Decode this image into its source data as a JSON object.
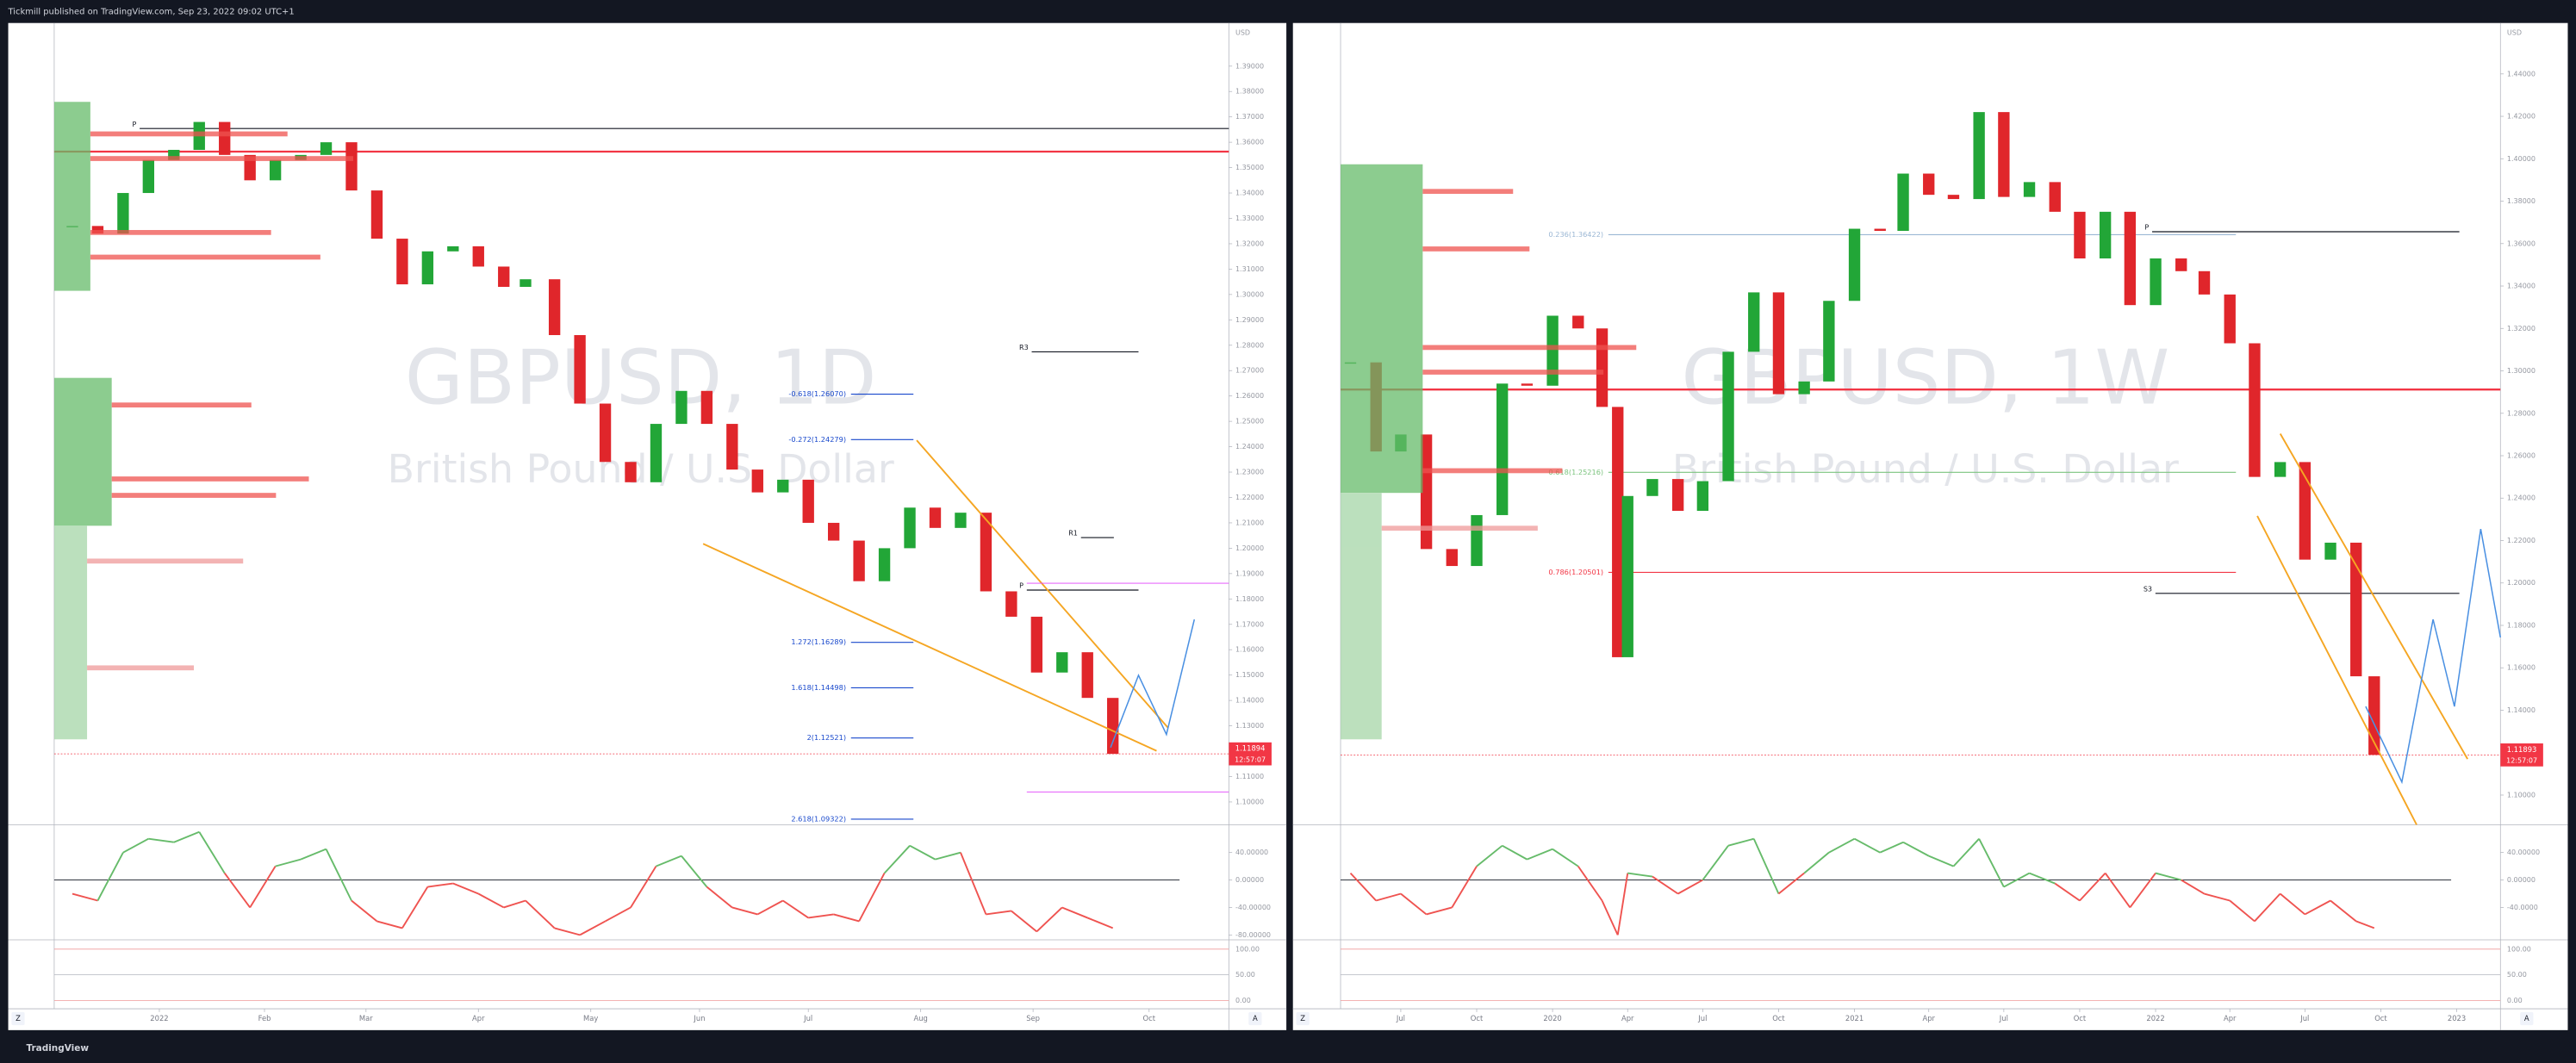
{
  "header": {
    "title": "Tickmill published on TradingView.com, Sep 23, 2022 09:02 UTC+1"
  },
  "panes": [
    {
      "symbol_title": "GBPUSD, 1D",
      "description": "British Pound / U.S. Dollar",
      "currency": "USD",
      "xlim": [
        "2021-12-05",
        "2022-10-25"
      ],
      "xticks": [
        {
          "value": "2022-01-03",
          "label": "2022"
        },
        {
          "value": "2022-02-01",
          "label": "Feb"
        },
        {
          "value": "2022-03-01",
          "label": "Mar"
        },
        {
          "value": "2022-04-01",
          "label": "Apr"
        },
        {
          "value": "2022-05-02",
          "label": "May"
        },
        {
          "value": "2022-06-01",
          "label": "Jun"
        },
        {
          "value": "2022-07-01",
          "label": "Jul"
        },
        {
          "value": "2022-08-01",
          "label": "Aug"
        },
        {
          "value": "2022-09-01",
          "label": "Sep"
        },
        {
          "value": "2022-10-03",
          "label": "Oct"
        }
      ],
      "ylim": [
        1.091,
        1.407
      ],
      "yticks": [
        {
          "value": 1.39,
          "label": "1.39000"
        },
        {
          "value": 1.38,
          "label": "1.38000"
        },
        {
          "value": 1.37,
          "label": "1.37000"
        },
        {
          "value": 1.36,
          "label": "1.36000"
        },
        {
          "value": 1.35,
          "label": "1.35000"
        },
        {
          "value": 1.34,
          "label": "1.34000"
        },
        {
          "value": 1.33,
          "label": "1.33000"
        },
        {
          "value": 1.32,
          "label": "1.32000"
        },
        {
          "value": 1.31,
          "label": "1.31000"
        },
        {
          "value": 1.3,
          "label": "1.30000"
        },
        {
          "value": 1.29,
          "label": "1.29000"
        },
        {
          "value": 1.28,
          "label": "1.28000"
        },
        {
          "value": 1.27,
          "label": "1.27000"
        },
        {
          "value": 1.26,
          "label": "1.26000"
        },
        {
          "value": 1.25,
          "label": "1.25000"
        },
        {
          "value": 1.24,
          "label": "1.24000"
        },
        {
          "value": 1.23,
          "label": "1.23000"
        },
        {
          "value": 1.22,
          "label": "1.22000"
        },
        {
          "value": 1.21,
          "label": "1.21000"
        },
        {
          "value": 1.2,
          "label": "1.20000"
        },
        {
          "value": 1.19,
          "label": "1.19000"
        },
        {
          "value": 1.18,
          "label": "1.18000"
        },
        {
          "value": 1.17,
          "label": "1.17000"
        },
        {
          "value": 1.16,
          "label": "1.16000"
        },
        {
          "value": 1.15,
          "label": "1.15000"
        },
        {
          "value": 1.14,
          "label": "1.14000"
        },
        {
          "value": 1.13,
          "label": "1.13000"
        },
        {
          "value": 1.12,
          "label": "1.12000"
        },
        {
          "value": 1.11,
          "label": "1.11000"
        },
        {
          "value": 1.1,
          "label": "1.10000"
        }
      ],
      "candles": {
        "up_color": "#22a637",
        "down_color": "#e0262b",
        "x": [
          "2021-12-10",
          "2021-12-17",
          "2021-12-24",
          "2021-12-31",
          "2022-01-07",
          "2022-01-14",
          "2022-01-21",
          "2022-01-28",
          "2022-02-04",
          "2022-02-11",
          "2022-02-18",
          "2022-02-25",
          "2022-03-04",
          "2022-03-11",
          "2022-03-18",
          "2022-03-25",
          "2022-04-01",
          "2022-04-08",
          "2022-04-14",
          "2022-04-22",
          "2022-04-29",
          "2022-05-06",
          "2022-05-13",
          "2022-05-20",
          "2022-05-27",
          "2022-06-03",
          "2022-06-10",
          "2022-06-17",
          "2022-06-24",
          "2022-07-01",
          "2022-07-08",
          "2022-07-15",
          "2022-07-22",
          "2022-07-29",
          "2022-08-05",
          "2022-08-12",
          "2022-08-19",
          "2022-08-26",
          "2022-09-02",
          "2022-09-09",
          "2022-09-16",
          "2022-09-23"
        ],
        "close": [
          1.327,
          1.324,
          1.34,
          1.353,
          1.357,
          1.368,
          1.355,
          1.345,
          1.353,
          1.355,
          1.36,
          1.341,
          1.322,
          1.304,
          1.317,
          1.319,
          1.311,
          1.303,
          1.306,
          1.284,
          1.257,
          1.234,
          1.226,
          1.249,
          1.262,
          1.249,
          1.231,
          1.222,
          1.227,
          1.21,
          1.203,
          1.187,
          1.2,
          1.216,
          1.208,
          1.214,
          1.183,
          1.173,
          1.151,
          1.159,
          1.141,
          1.11894
        ]
      },
      "last_price": 1.11894,
      "countdown": "12:57:07",
      "fib_levels": [
        {
          "label": "-0.618(1.26070)",
          "value": 1.2607,
          "color": "#1848cc"
        },
        {
          "label": "-0.272(1.24279)",
          "value": 1.24279,
          "color": "#1848cc"
        },
        {
          "label": "1.272(1.16289)",
          "value": 1.16289,
          "color": "#1848cc"
        },
        {
          "label": "1.618(1.14498)",
          "value": 1.14498,
          "color": "#1848cc"
        },
        {
          "label": "2(1.12521)",
          "value": 1.12521,
          "color": "#1848cc"
        },
        {
          "label": "2.618(1.09322)",
          "value": 1.09322,
          "color": "#1848cc"
        }
      ],
      "pivots": [
        {
          "name": "P",
          "price": 1.3654
        },
        {
          "name": "R3",
          "price": 1.2774
        },
        {
          "name": "R1",
          "price": 1.2042
        },
        {
          "name": "P",
          "price": 1.1835
        }
      ],
      "red_level": 1.3563,
      "oscillator": {
        "ylim": [
          -87,
          78
        ],
        "yticks": [
          {
            "value": 40,
            "label": "40.00000"
          },
          {
            "value": 0,
            "label": "0.00000"
          },
          {
            "value": -40,
            "label": "-40.00000"
          },
          {
            "value": -80,
            "label": "-80.00000"
          }
        ],
        "values": [
          -20,
          -30,
          40,
          60,
          55,
          70,
          10,
          -40,
          20,
          30,
          45,
          -30,
          -60,
          -70,
          -10,
          -5,
          -20,
          -40,
          -30,
          -70,
          -80,
          -60,
          -40,
          20,
          35,
          -10,
          -40,
          -50,
          -30,
          -55,
          -50,
          -60,
          10,
          50,
          30,
          40,
          -50,
          -45,
          -75,
          -40,
          -55,
          -70
        ]
      },
      "stochastic": {
        "ylim": [
          -16,
          115
        ],
        "yticks": [
          {
            "value": 100,
            "label": "100.00"
          },
          {
            "value": 50,
            "label": "50.00"
          },
          {
            "value": 0,
            "label": "0.00"
          }
        ]
      },
      "axis_buttons": [
        "Z",
        "A"
      ]
    },
    {
      "symbol_title": "GBPUSD, 1W",
      "description": "British Pound / U.S. Dollar",
      "currency": "USD",
      "xlim": [
        "2019-04-19",
        "2023-02-23"
      ],
      "xticks": [
        {
          "value": "2019-07-01",
          "label": "Jul"
        },
        {
          "value": "2019-10-01",
          "label": "Oct"
        },
        {
          "value": "2020-01-01",
          "label": "2020"
        },
        {
          "value": "2020-04-01",
          "label": "Apr"
        },
        {
          "value": "2020-07-01",
          "label": "Jul"
        },
        {
          "value": "2020-10-01",
          "label": "Oct"
        },
        {
          "value": "2021-01-01",
          "label": "2021"
        },
        {
          "value": "2021-04-01",
          "label": "Apr"
        },
        {
          "value": "2021-07-01",
          "label": "Jul"
        },
        {
          "value": "2021-10-01",
          "label": "Oct"
        },
        {
          "value": "2022-01-01",
          "label": "2022"
        },
        {
          "value": "2022-04-01",
          "label": "Apr"
        },
        {
          "value": "2022-07-01",
          "label": "Jul"
        },
        {
          "value": "2022-10-01",
          "label": "Oct"
        },
        {
          "value": "2023-01-01",
          "label": "2023"
        }
      ],
      "ylim": [
        1.086,
        1.464
      ],
      "yticks": [
        {
          "value": 1.44,
          "label": "1.44000"
        },
        {
          "value": 1.42,
          "label": "1.42000"
        },
        {
          "value": 1.4,
          "label": "1.40000"
        },
        {
          "value": 1.38,
          "label": "1.38000"
        },
        {
          "value": 1.36,
          "label": "1.36000"
        },
        {
          "value": 1.34,
          "label": "1.34000"
        },
        {
          "value": 1.32,
          "label": "1.32000"
        },
        {
          "value": 1.3,
          "label": "1.30000"
        },
        {
          "value": 1.28,
          "label": "1.28000"
        },
        {
          "value": 1.26,
          "label": "1.26000"
        },
        {
          "value": 1.24,
          "label": "1.24000"
        },
        {
          "value": 1.22,
          "label": "1.22000"
        },
        {
          "value": 1.2,
          "label": "1.20000"
        },
        {
          "value": 1.18,
          "label": "1.18000"
        },
        {
          "value": 1.16,
          "label": "1.16000"
        },
        {
          "value": 1.14,
          "label": "1.14000"
        },
        {
          "value": 1.12,
          "label": "1.12000"
        },
        {
          "value": 1.1,
          "label": "1.10000"
        }
      ],
      "candles": {
        "up_color": "#22a637",
        "down_color": "#e0262b",
        "x": [
          "2019-05-01",
          "2019-06-01",
          "2019-07-01",
          "2019-08-01",
          "2019-09-01",
          "2019-10-01",
          "2019-11-01",
          "2019-12-01",
          "2020-01-01",
          "2020-02-01",
          "2020-03-01",
          "2020-03-20",
          "2020-04-01",
          "2020-05-01",
          "2020-06-01",
          "2020-07-01",
          "2020-08-01",
          "2020-09-01",
          "2020-10-01",
          "2020-11-01",
          "2020-12-01",
          "2021-01-01",
          "2021-02-01",
          "2021-03-01",
          "2021-04-01",
          "2021-05-01",
          "2021-06-01",
          "2021-07-01",
          "2021-08-01",
          "2021-09-01",
          "2021-10-01",
          "2021-11-01",
          "2021-12-01",
          "2022-01-01",
          "2022-02-01",
          "2022-03-01",
          "2022-04-01",
          "2022-05-01",
          "2022-06-01",
          "2022-07-01",
          "2022-08-01",
          "2022-09-01",
          "2022-09-23"
        ],
        "close": [
          1.304,
          1.262,
          1.27,
          1.216,
          1.208,
          1.232,
          1.294,
          1.293,
          1.326,
          1.32,
          1.283,
          1.165,
          1.241,
          1.249,
          1.234,
          1.248,
          1.309,
          1.337,
          1.289,
          1.295,
          1.333,
          1.367,
          1.366,
          1.393,
          1.383,
          1.381,
          1.422,
          1.382,
          1.389,
          1.375,
          1.353,
          1.375,
          1.331,
          1.353,
          1.347,
          1.336,
          1.313,
          1.25,
          1.257,
          1.211,
          1.219,
          1.156,
          1.11893
        ]
      },
      "last_price": 1.11893,
      "countdown": "12:57:07",
      "fib_levels": [
        {
          "label": "0.236(1.36422)",
          "value": 1.36422,
          "color": "#9bb7d4"
        },
        {
          "label": "0.618(1.25216)",
          "value": 1.25216,
          "color": "#7cc47f"
        },
        {
          "label": "0.786(1.20501)",
          "value": 1.20501,
          "color": "#f23645"
        }
      ],
      "pivots": [
        {
          "name": "P",
          "price": 1.3656
        },
        {
          "name": "S3",
          "price": 1.1951
        }
      ],
      "red_level": 1.2912,
      "oscillator": {
        "ylim": [
          -87,
          78
        ],
        "yticks": [
          {
            "value": 40,
            "label": "40.00000"
          },
          {
            "value": 0,
            "label": "0.00000"
          },
          {
            "value": -40,
            "label": "-40.0000"
          }
        ],
        "values": [
          10,
          -30,
          -20,
          -50,
          -40,
          20,
          50,
          30,
          45,
          20,
          -30,
          -80,
          10,
          5,
          -20,
          0,
          50,
          60,
          -20,
          10,
          40,
          60,
          40,
          55,
          35,
          20,
          60,
          -10,
          10,
          -5,
          -30,
          10,
          -40,
          10,
          0,
          -20,
          -30,
          -60,
          -20,
          -50,
          -30,
          -60,
          -70
        ]
      },
      "stochastic": {
        "ylim": [
          -16,
          115
        ],
        "yticks": [
          {
            "value": 100,
            "label": "100.00"
          },
          {
            "value": 50,
            "label": "50.00"
          },
          {
            "value": 0,
            "label": "0.00"
          }
        ]
      },
      "axis_buttons": [
        "Z",
        "A"
      ]
    }
  ],
  "footer": {
    "brand": "TradingView"
  }
}
